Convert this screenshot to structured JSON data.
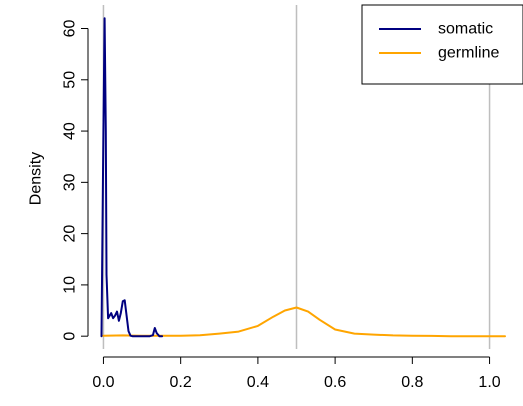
{
  "chart_data": {
    "type": "line",
    "xlabel": "",
    "ylabel": "Density",
    "xlim": [
      -0.04,
      1.04
    ],
    "ylim": [
      -2.5,
      64
    ],
    "xticks": [
      0.0,
      0.2,
      0.4,
      0.6,
      0.8,
      1.0
    ],
    "xtick_labels": [
      "0.0",
      "0.2",
      "0.4",
      "0.6",
      "0.8",
      "1.0"
    ],
    "yticks": [
      0,
      10,
      20,
      30,
      40,
      50,
      60
    ],
    "ytick_labels": [
      "0",
      "10",
      "20",
      "30",
      "40",
      "50",
      "60"
    ],
    "vlines": [
      0.0,
      0.5,
      1.0
    ],
    "vline_color": "#bebebe",
    "grid": false,
    "legend_position": "top-right",
    "series": [
      {
        "name": "somatic",
        "color": "#000080",
        "x": [
          -0.005,
          0.0,
          0.003,
          0.006,
          0.008,
          0.012,
          0.016,
          0.02,
          0.025,
          0.03,
          0.035,
          0.04,
          0.045,
          0.05,
          0.055,
          0.06,
          0.065,
          0.07,
          0.075,
          0.08,
          0.09,
          0.1,
          0.11,
          0.12,
          0.128,
          0.133,
          0.138,
          0.145,
          0.152
        ],
        "y": [
          0,
          40,
          62,
          40,
          12,
          3.5,
          4.0,
          4.5,
          3.5,
          4.0,
          4.8,
          3.0,
          4.5,
          6.8,
          7.0,
          4.0,
          1.0,
          0.1,
          0,
          0,
          0,
          0,
          0,
          0,
          0.2,
          1.6,
          0.6,
          0,
          0
        ]
      },
      {
        "name": "germline",
        "color": "#ffa500",
        "x": [
          0.0,
          0.05,
          0.1,
          0.15,
          0.2,
          0.25,
          0.3,
          0.35,
          0.4,
          0.44,
          0.47,
          0.5,
          0.53,
          0.56,
          0.6,
          0.65,
          0.7,
          0.75,
          0.8,
          0.85,
          0.9,
          0.95,
          1.0,
          1.04
        ],
        "y": [
          0.1,
          0.15,
          0.1,
          0.1,
          0.1,
          0.2,
          0.5,
          0.9,
          2.0,
          3.8,
          5.0,
          5.6,
          4.8,
          3.2,
          1.3,
          0.5,
          0.3,
          0.15,
          0.1,
          0.05,
          0.0,
          0.0,
          0.0,
          0.0
        ]
      }
    ]
  }
}
